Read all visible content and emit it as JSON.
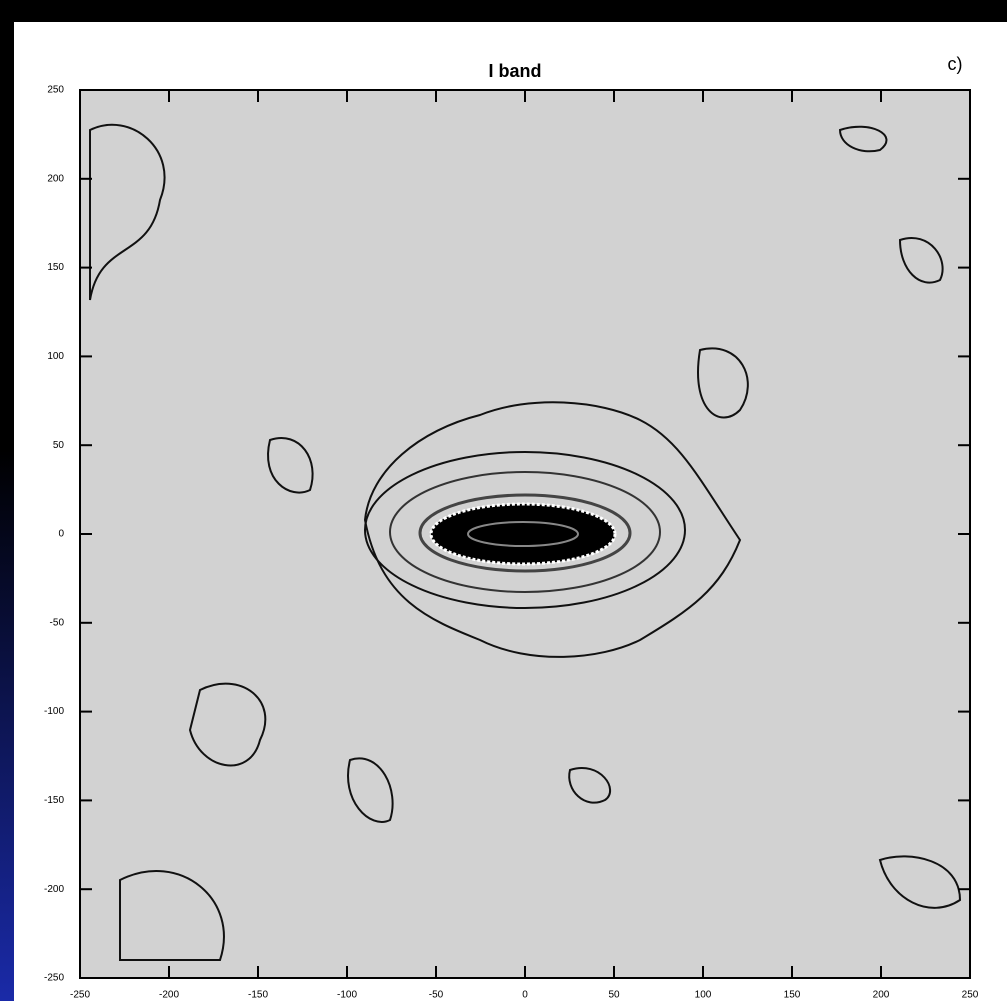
{
  "chart_data": {
    "type": "contour",
    "title": "I band",
    "panel_label": "c)",
    "xlim": [
      -250,
      250
    ],
    "ylim": [
      -250,
      250
    ],
    "xticks": [
      -250,
      -200,
      -150,
      -100,
      -50,
      0,
      50,
      100,
      150,
      200,
      250
    ],
    "yticks": [
      -250,
      -200,
      -150,
      -100,
      -50,
      0,
      50,
      100,
      150,
      200,
      250
    ]
  }
}
